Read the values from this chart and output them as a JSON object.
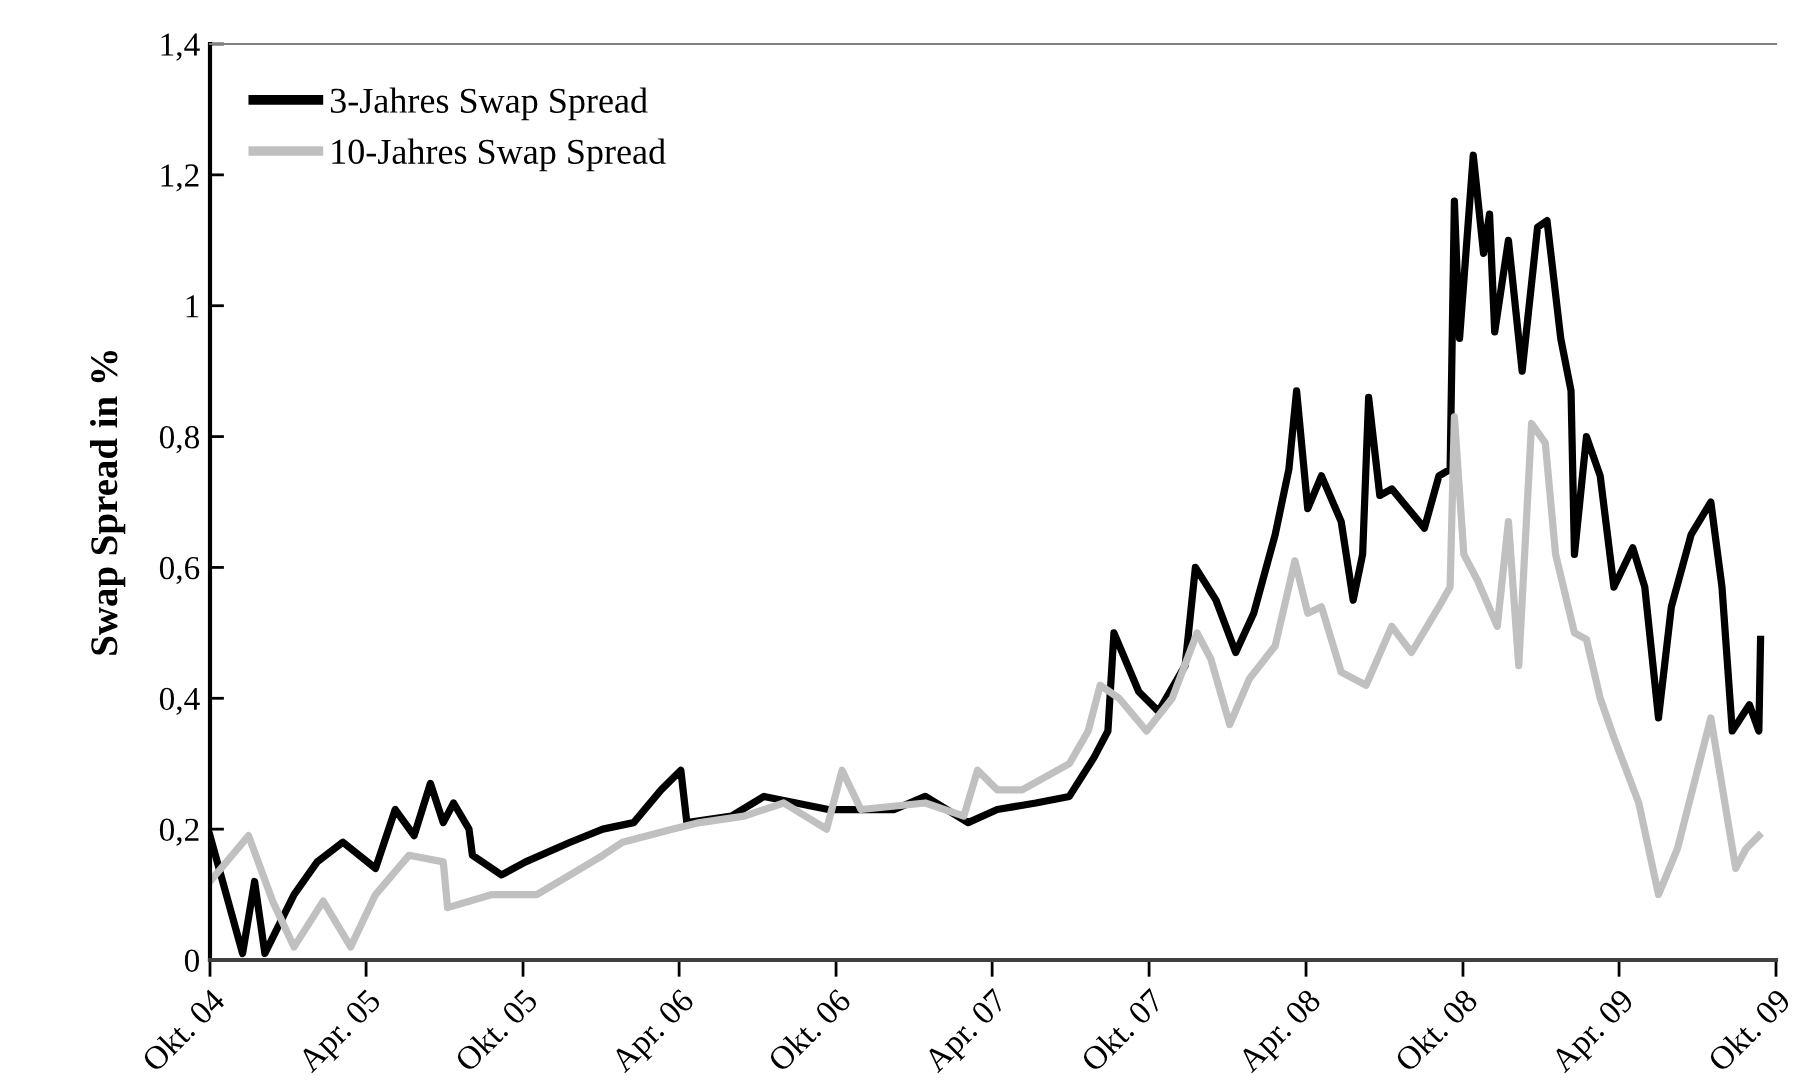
{
  "chart_data": {
    "type": "line",
    "ylabel": "Swap Spread in %",
    "legend": "top left",
    "grid": false,
    "line_style": "solid",
    "marker": "none",
    "ylim": [
      0,
      1.4
    ],
    "yticks": [
      0,
      {
        "value": 0.2,
        "label": "0,2"
      },
      {
        "value": 0.4,
        "label": "0,4"
      },
      {
        "value": 0.6,
        "label": "0,6"
      },
      {
        "value": 0.8,
        "label": "0,8"
      },
      1,
      {
        "value": 1.2,
        "label": "1,2"
      },
      {
        "value": 1.4,
        "label": "1,4"
      }
    ],
    "xlim": [
      "2004-10-01",
      "2009-10-01"
    ],
    "xticks": [
      {
        "value": "2004-10",
        "label": "Okt. 04"
      },
      {
        "value": "2005-04",
        "label": "Apr. 05"
      },
      {
        "value": "2005-10",
        "label": "Okt. 05"
      },
      {
        "value": "2006-04",
        "label": "Apr. 06"
      },
      {
        "value": "2006-10",
        "label": "Okt. 06"
      },
      {
        "value": "2007-04",
        "label": "Apr. 07"
      },
      {
        "value": "2007-10",
        "label": "Okt. 07"
      },
      {
        "value": "2008-04",
        "label": "Apr. 08"
      },
      {
        "value": "2008-10",
        "label": "Okt. 08"
      },
      {
        "value": "2009-04",
        "label": "Apr. 09"
      },
      {
        "value": "2009-10",
        "label": "Okt. 09"
      }
    ],
    "series": [
      {
        "name": "3-Jahres Swap Spread",
        "color": "#000000",
        "x": [
          "2004-10-01",
          "2004-11-08",
          "2004-11-22",
          "2004-12-04",
          "2005-01-07",
          "2005-02-03",
          "2005-03-05",
          "2005-04-12",
          "2005-05-05",
          "2005-05-27",
          "2005-06-15",
          "2005-06-30",
          "2005-07-12",
          "2005-07-30",
          "2005-08-03",
          "2005-09-06",
          "2005-10-04",
          "2005-11-25",
          "2006-01-02",
          "2006-02-07",
          "2006-03-11",
          "2006-04-03",
          "2006-04-10",
          "2006-06-01",
          "2006-07-09",
          "2006-09-22",
          "2006-12-08",
          "2007-01-13",
          "2007-03-04",
          "2007-04-07",
          "2007-05-22",
          "2007-06-30",
          "2007-07-29",
          "2007-08-14",
          "2007-08-21",
          "2007-09-19",
          "2007-10-12",
          "2007-11-12",
          "2007-11-24",
          "2007-12-18",
          "2008-01-10",
          "2008-01-31",
          "2008-02-25",
          "2008-03-12",
          "2008-03-21",
          "2008-04-03",
          "2008-04-19",
          "2008-05-12",
          "2008-05-26",
          "2008-06-06",
          "2008-06-13",
          "2008-06-26",
          "2008-07-10",
          "2008-08-17",
          "2008-09-03",
          "2008-09-16",
          "2008-09-21",
          "2008-09-27",
          "2008-10-13",
          "2008-10-25",
          "2008-11-01",
          "2008-11-07",
          "2008-11-23",
          "2008-12-09",
          "2008-12-27",
          "2009-01-07",
          "2009-01-23",
          "2009-02-04",
          "2009-02-08",
          "2009-02-22",
          "2009-03-10",
          "2009-03-26",
          "2009-04-17",
          "2009-05-01",
          "2009-05-17",
          "2009-06-01",
          "2009-06-24",
          "2009-07-17",
          "2009-07-30",
          "2009-08-11",
          "2009-08-31",
          "2009-09-11",
          "2009-09-13"
        ],
        "values": [
          0.19,
          0.01,
          0.12,
          0.01,
          0.1,
          0.15,
          0.18,
          0.14,
          0.23,
          0.19,
          0.27,
          0.21,
          0.24,
          0.2,
          0.16,
          0.13,
          0.15,
          0.18,
          0.2,
          0.21,
          0.26,
          0.29,
          0.21,
          0.22,
          0.25,
          0.23,
          0.23,
          0.25,
          0.21,
          0.23,
          0.24,
          0.25,
          0.31,
          0.35,
          0.5,
          0.41,
          0.38,
          0.45,
          0.6,
          0.55,
          0.47,
          0.53,
          0.65,
          0.75,
          0.87,
          0.69,
          0.74,
          0.67,
          0.55,
          0.62,
          0.86,
          0.71,
          0.72,
          0.66,
          0.74,
          0.75,
          1.16,
          0.95,
          1.23,
          1.08,
          1.14,
          0.96,
          1.1,
          0.9,
          1.12,
          1.13,
          0.95,
          0.87,
          0.62,
          0.8,
          0.74,
          0.57,
          0.63,
          0.57,
          0.37,
          0.54,
          0.65,
          0.7,
          0.57,
          0.35,
          0.39,
          0.35,
          0.49
        ]
      },
      {
        "name": "10-Jahres Swap Spread",
        "color": "#c0c0c0",
        "x": [
          "2004-10-01",
          "2004-11-15",
          "2004-12-13",
          "2005-01-07",
          "2005-02-10",
          "2005-03-14",
          "2005-04-12",
          "2005-05-21",
          "2005-06-30",
          "2005-07-05",
          "2005-08-26",
          "2005-10-17",
          "2005-11-25",
          "2006-01-02",
          "2006-01-25",
          "2006-03-24",
          "2006-04-25",
          "2006-06-16",
          "2006-08-01",
          "2006-09-20",
          "2006-10-08",
          "2006-10-30",
          "2007-01-13",
          "2007-02-27",
          "2007-03-15",
          "2007-04-07",
          "2007-05-06",
          "2007-06-30",
          "2007-07-22",
          "2007-08-05",
          "2007-08-27",
          "2007-09-28",
          "2007-10-28",
          "2007-11-26",
          "2007-12-12",
          "2008-01-03",
          "2008-01-26",
          "2008-02-25",
          "2008-03-19",
          "2008-04-03",
          "2008-04-19",
          "2008-05-12",
          "2008-06-10",
          "2008-07-10",
          "2008-08-02",
          "2008-09-03",
          "2008-09-16",
          "2008-09-21",
          "2008-10-02",
          "2008-10-18",
          "2008-11-10",
          "2008-11-23",
          "2008-12-05",
          "2008-12-20",
          "2009-01-05",
          "2009-01-17",
          "2009-02-08",
          "2009-02-22",
          "2009-03-10",
          "2009-03-26",
          "2009-04-24",
          "2009-05-17",
          "2009-06-08",
          "2009-07-17",
          "2009-08-15",
          "2009-08-27",
          "2009-09-11"
        ],
        "values": [
          0.12,
          0.19,
          0.09,
          0.02,
          0.09,
          0.02,
          0.1,
          0.16,
          0.15,
          0.08,
          0.1,
          0.1,
          0.13,
          0.16,
          0.18,
          0.2,
          0.21,
          0.22,
          0.24,
          0.2,
          0.29,
          0.23,
          0.24,
          0.22,
          0.29,
          0.26,
          0.26,
          0.3,
          0.35,
          0.42,
          0.4,
          0.35,
          0.4,
          0.5,
          0.46,
          0.36,
          0.43,
          0.48,
          0.61,
          0.53,
          0.54,
          0.44,
          0.42,
          0.51,
          0.47,
          0.54,
          0.57,
          0.83,
          0.62,
          0.58,
          0.51,
          0.67,
          0.45,
          0.82,
          0.79,
          0.62,
          0.5,
          0.49,
          0.4,
          0.34,
          0.24,
          0.1,
          0.17,
          0.37,
          0.14,
          0.17,
          0.19
        ]
      }
    ]
  }
}
